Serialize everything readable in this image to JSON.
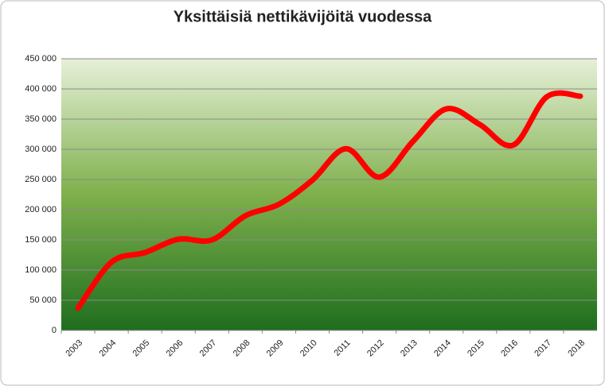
{
  "chart_data": {
    "type": "line",
    "title": "Yksittäisiä nettikävijöitä vuodessa",
    "categories": [
      "2003",
      "2004",
      "2005",
      "2006",
      "2007",
      "2008",
      "2009",
      "2010",
      "2011",
      "2012",
      "2013",
      "2014",
      "2015",
      "2016",
      "2017",
      "2018"
    ],
    "series": [
      {
        "name": "Yksittäisiä nettikävijöitä",
        "color": "#ff0000",
        "values": [
          37000,
          113000,
          129000,
          151000,
          150000,
          190000,
          209000,
          249000,
          301000,
          254000,
          313000,
          367000,
          341000,
          307000,
          387000,
          388000
        ]
      }
    ],
    "ylim": [
      0,
      450000
    ],
    "yticks": [
      {
        "value": 0,
        "label": "0"
      },
      {
        "value": 50000,
        "label": "50 000"
      },
      {
        "value": 100000,
        "label": "100 000"
      },
      {
        "value": 150000,
        "label": "150 000"
      },
      {
        "value": 200000,
        "label": "200 000"
      },
      {
        "value": 250000,
        "label": "250 000"
      },
      {
        "value": 300000,
        "label": "300 000"
      },
      {
        "value": 350000,
        "label": "350 000"
      },
      {
        "value": 400000,
        "label": "400 000"
      },
      {
        "value": 450000,
        "label": "450 000"
      }
    ],
    "grid": true
  }
}
